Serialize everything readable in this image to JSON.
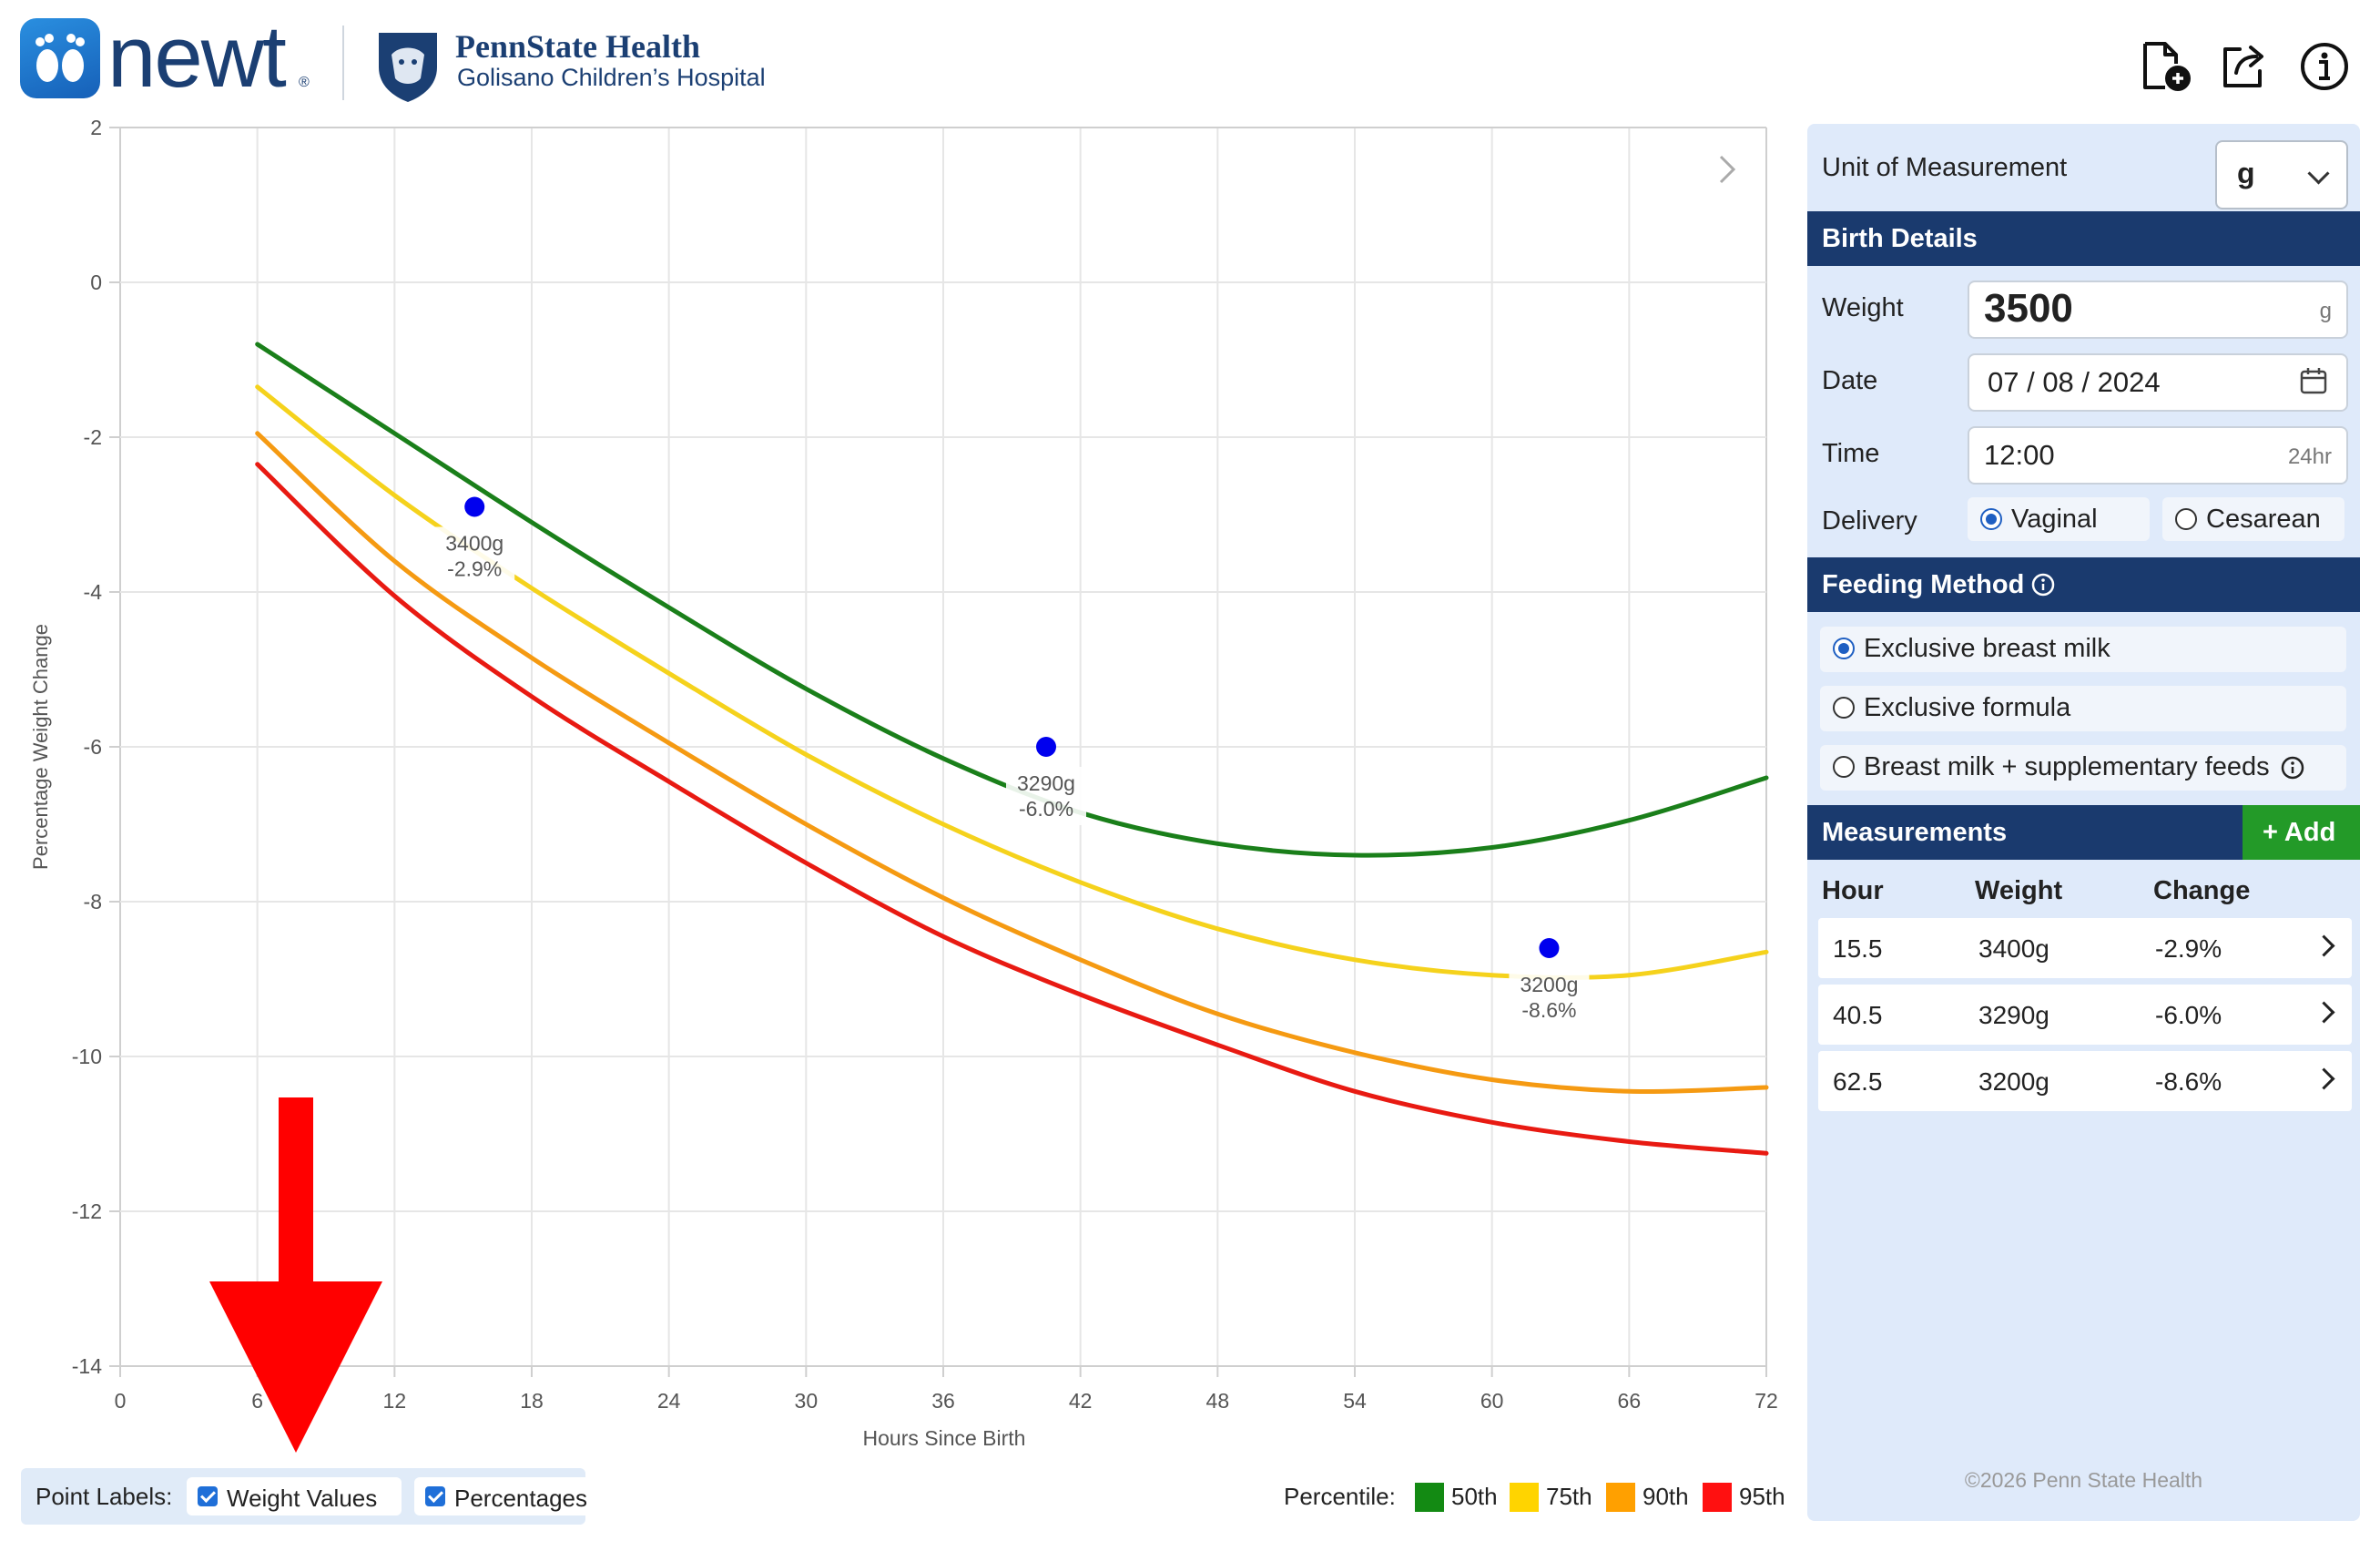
{
  "header": {
    "app_name": "newt",
    "app_reg": "®",
    "org_title": "PennState Health",
    "org_subtitle": "Golisano Children’s Hospital",
    "icons": [
      "new-document-icon",
      "share-icon",
      "info-icon"
    ]
  },
  "chart_data": {
    "type": "line",
    "xlabel": "Hours Since Birth",
    "ylabel": "Percentage Weight Change",
    "xlim": [
      0,
      72
    ],
    "ylim": [
      -14,
      2
    ],
    "x_ticks": [
      "0",
      "6",
      "12",
      "18",
      "24",
      "30",
      "36",
      "42",
      "48",
      "54",
      "60",
      "66",
      "72"
    ],
    "y_ticks": [
      "2",
      "0",
      "-2",
      "-4",
      "-6",
      "-8",
      "-10",
      "-12",
      "-14"
    ],
    "grid": true,
    "series": [
      {
        "name": "50th",
        "color": "#1a7f1a",
        "x": [
          6,
          12,
          18,
          24,
          30,
          36,
          42,
          48,
          54,
          60,
          66,
          72
        ],
        "values": [
          -0.8,
          -1.95,
          -3.1,
          -4.2,
          -5.25,
          -6.15,
          -6.85,
          -7.25,
          -7.4,
          -7.3,
          -6.95,
          -6.4
        ]
      },
      {
        "name": "75th",
        "color": "#f5d21c",
        "x": [
          6,
          12,
          18,
          24,
          30,
          36,
          42,
          48,
          54,
          60,
          66,
          72
        ],
        "values": [
          -1.35,
          -2.75,
          -3.95,
          -5.05,
          -6.1,
          -7.0,
          -7.75,
          -8.35,
          -8.75,
          -8.95,
          -8.95,
          -8.65
        ]
      },
      {
        "name": "90th",
        "color": "#f59a12",
        "x": [
          6,
          12,
          18,
          24,
          30,
          36,
          42,
          48,
          54,
          60,
          66,
          72
        ],
        "values": [
          -1.95,
          -3.6,
          -4.85,
          -5.95,
          -7.0,
          -7.95,
          -8.75,
          -9.45,
          -9.95,
          -10.3,
          -10.45,
          -10.4
        ]
      },
      {
        "name": "95th",
        "color": "#e81a12",
        "x": [
          6,
          12,
          18,
          24,
          30,
          36,
          42,
          48,
          54,
          60,
          66,
          72
        ],
        "values": [
          -2.35,
          -4.05,
          -5.35,
          -6.45,
          -7.5,
          -8.45,
          -9.2,
          -9.85,
          -10.45,
          -10.85,
          -11.1,
          -11.25
        ]
      }
    ],
    "points": [
      {
        "x": 15.5,
        "y": -2.9,
        "weight_label": "3400g",
        "pct_label": "-2.9%"
      },
      {
        "x": 40.5,
        "y": -6.0,
        "weight_label": "3290g",
        "pct_label": "-6.0%"
      },
      {
        "x": 62.5,
        "y": -8.6,
        "weight_label": "3200g",
        "pct_label": "-8.6%"
      }
    ]
  },
  "point_labels": {
    "title": "Point Labels:",
    "options": [
      {
        "label": "Weight Values",
        "checked": true
      },
      {
        "label": "Percentages",
        "checked": true
      }
    ]
  },
  "legend": {
    "title": "Percentile:",
    "items": [
      {
        "label": "50th",
        "color": "#138a13"
      },
      {
        "label": "75th",
        "color": "#ffd400"
      },
      {
        "label": "90th",
        "color": "#ffa000"
      },
      {
        "label": "95th",
        "color": "#ff1010"
      }
    ]
  },
  "panel": {
    "unit_label": "Unit of Measurement",
    "unit_value": "g",
    "birth_details_title": "Birth Details",
    "weight_label": "Weight",
    "weight_value": "3500",
    "weight_unit": "g",
    "date_label": "Date",
    "date_value": "07 / 08 / 2024",
    "time_label": "Time",
    "time_value": "12:00",
    "time_format": "24hr",
    "delivery_label": "Delivery",
    "delivery_options": [
      "Vaginal",
      "Cesarean"
    ],
    "delivery_selected": "Vaginal",
    "feeding_title": "Feeding Method",
    "feeding_options": [
      "Exclusive breast milk",
      "Exclusive formula",
      "Breast milk + supplementary feeds"
    ],
    "feeding_selected": "Exclusive breast milk",
    "measurements_title": "Measurements",
    "add_label": "+ Add",
    "table_headers": [
      "Hour",
      "Weight",
      "Change"
    ],
    "rows": [
      {
        "hour": "15.5",
        "weight": "3400g",
        "change": "-2.9%"
      },
      {
        "hour": "40.5",
        "weight": "3290g",
        "change": "-6.0%"
      },
      {
        "hour": "62.5",
        "weight": "3200g",
        "change": "-8.6%"
      }
    ],
    "copyright": "©2026 Penn State Health"
  }
}
